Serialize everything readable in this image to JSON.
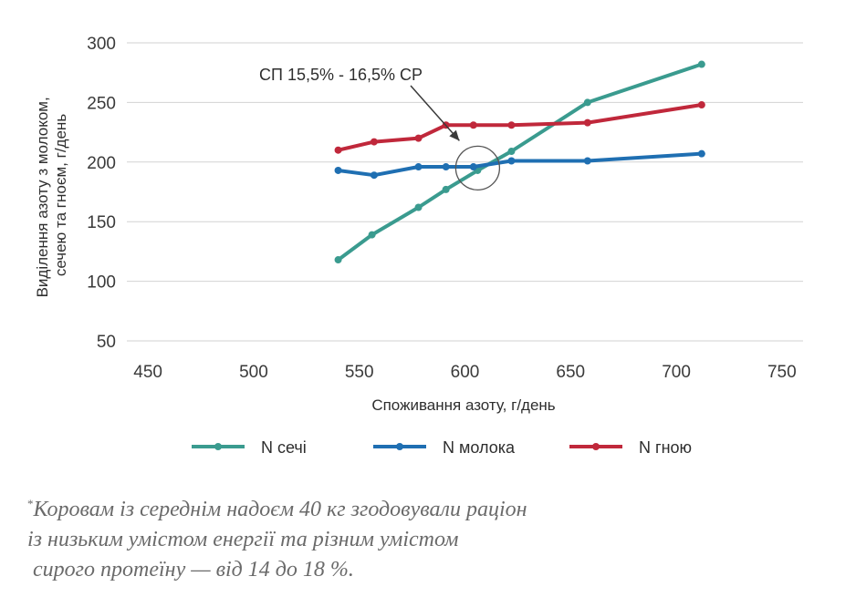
{
  "chart_data": {
    "type": "line",
    "xlabel": "Споживання азоту, г/день",
    "ylabel_lines": [
      "Виділення азоту з молоком,",
      "сечею та гноєм, г/день"
    ],
    "xlim": [
      440,
      760
    ],
    "ylim": [
      50,
      300
    ],
    "xticks": [
      450,
      500,
      550,
      600,
      650,
      700,
      750
    ],
    "yticks": [
      50,
      100,
      150,
      200,
      250,
      300
    ],
    "grid": "horizontal",
    "legend_position": "bottom",
    "series": [
      {
        "name": "N сечі",
        "color": "#3a9b8f",
        "points": [
          [
            540,
            118
          ],
          [
            556,
            139
          ],
          [
            578,
            162
          ],
          [
            591,
            177
          ],
          [
            606,
            193
          ],
          [
            622,
            209
          ],
          [
            658,
            250
          ],
          [
            712,
            282
          ]
        ]
      },
      {
        "name": "N молока",
        "color": "#1f6fb2",
        "points": [
          [
            540,
            193
          ],
          [
            557,
            189
          ],
          [
            578,
            196
          ],
          [
            591,
            196
          ],
          [
            604,
            196
          ],
          [
            622,
            201
          ],
          [
            658,
            201
          ],
          [
            712,
            207
          ]
        ]
      },
      {
        "name": "N гною",
        "color": "#c0283b",
        "points": [
          [
            540,
            210
          ],
          [
            557,
            217
          ],
          [
            578,
            220
          ],
          [
            591,
            231
          ],
          [
            604,
            231
          ],
          [
            622,
            231
          ],
          [
            658,
            233
          ],
          [
            712,
            248
          ]
        ]
      }
    ],
    "annotation": {
      "text": "СП 15,5% - 16,5% СР",
      "circle_center": [
        606,
        195
      ]
    }
  },
  "footnote": {
    "marker": "*",
    "lines": [
      "Коровам із середнім надоєм 40 кг згодовували раціон",
      "із низьким умістом енергії та різним умістом",
      " сирого протеїну — від 14 до 18 %."
    ]
  }
}
